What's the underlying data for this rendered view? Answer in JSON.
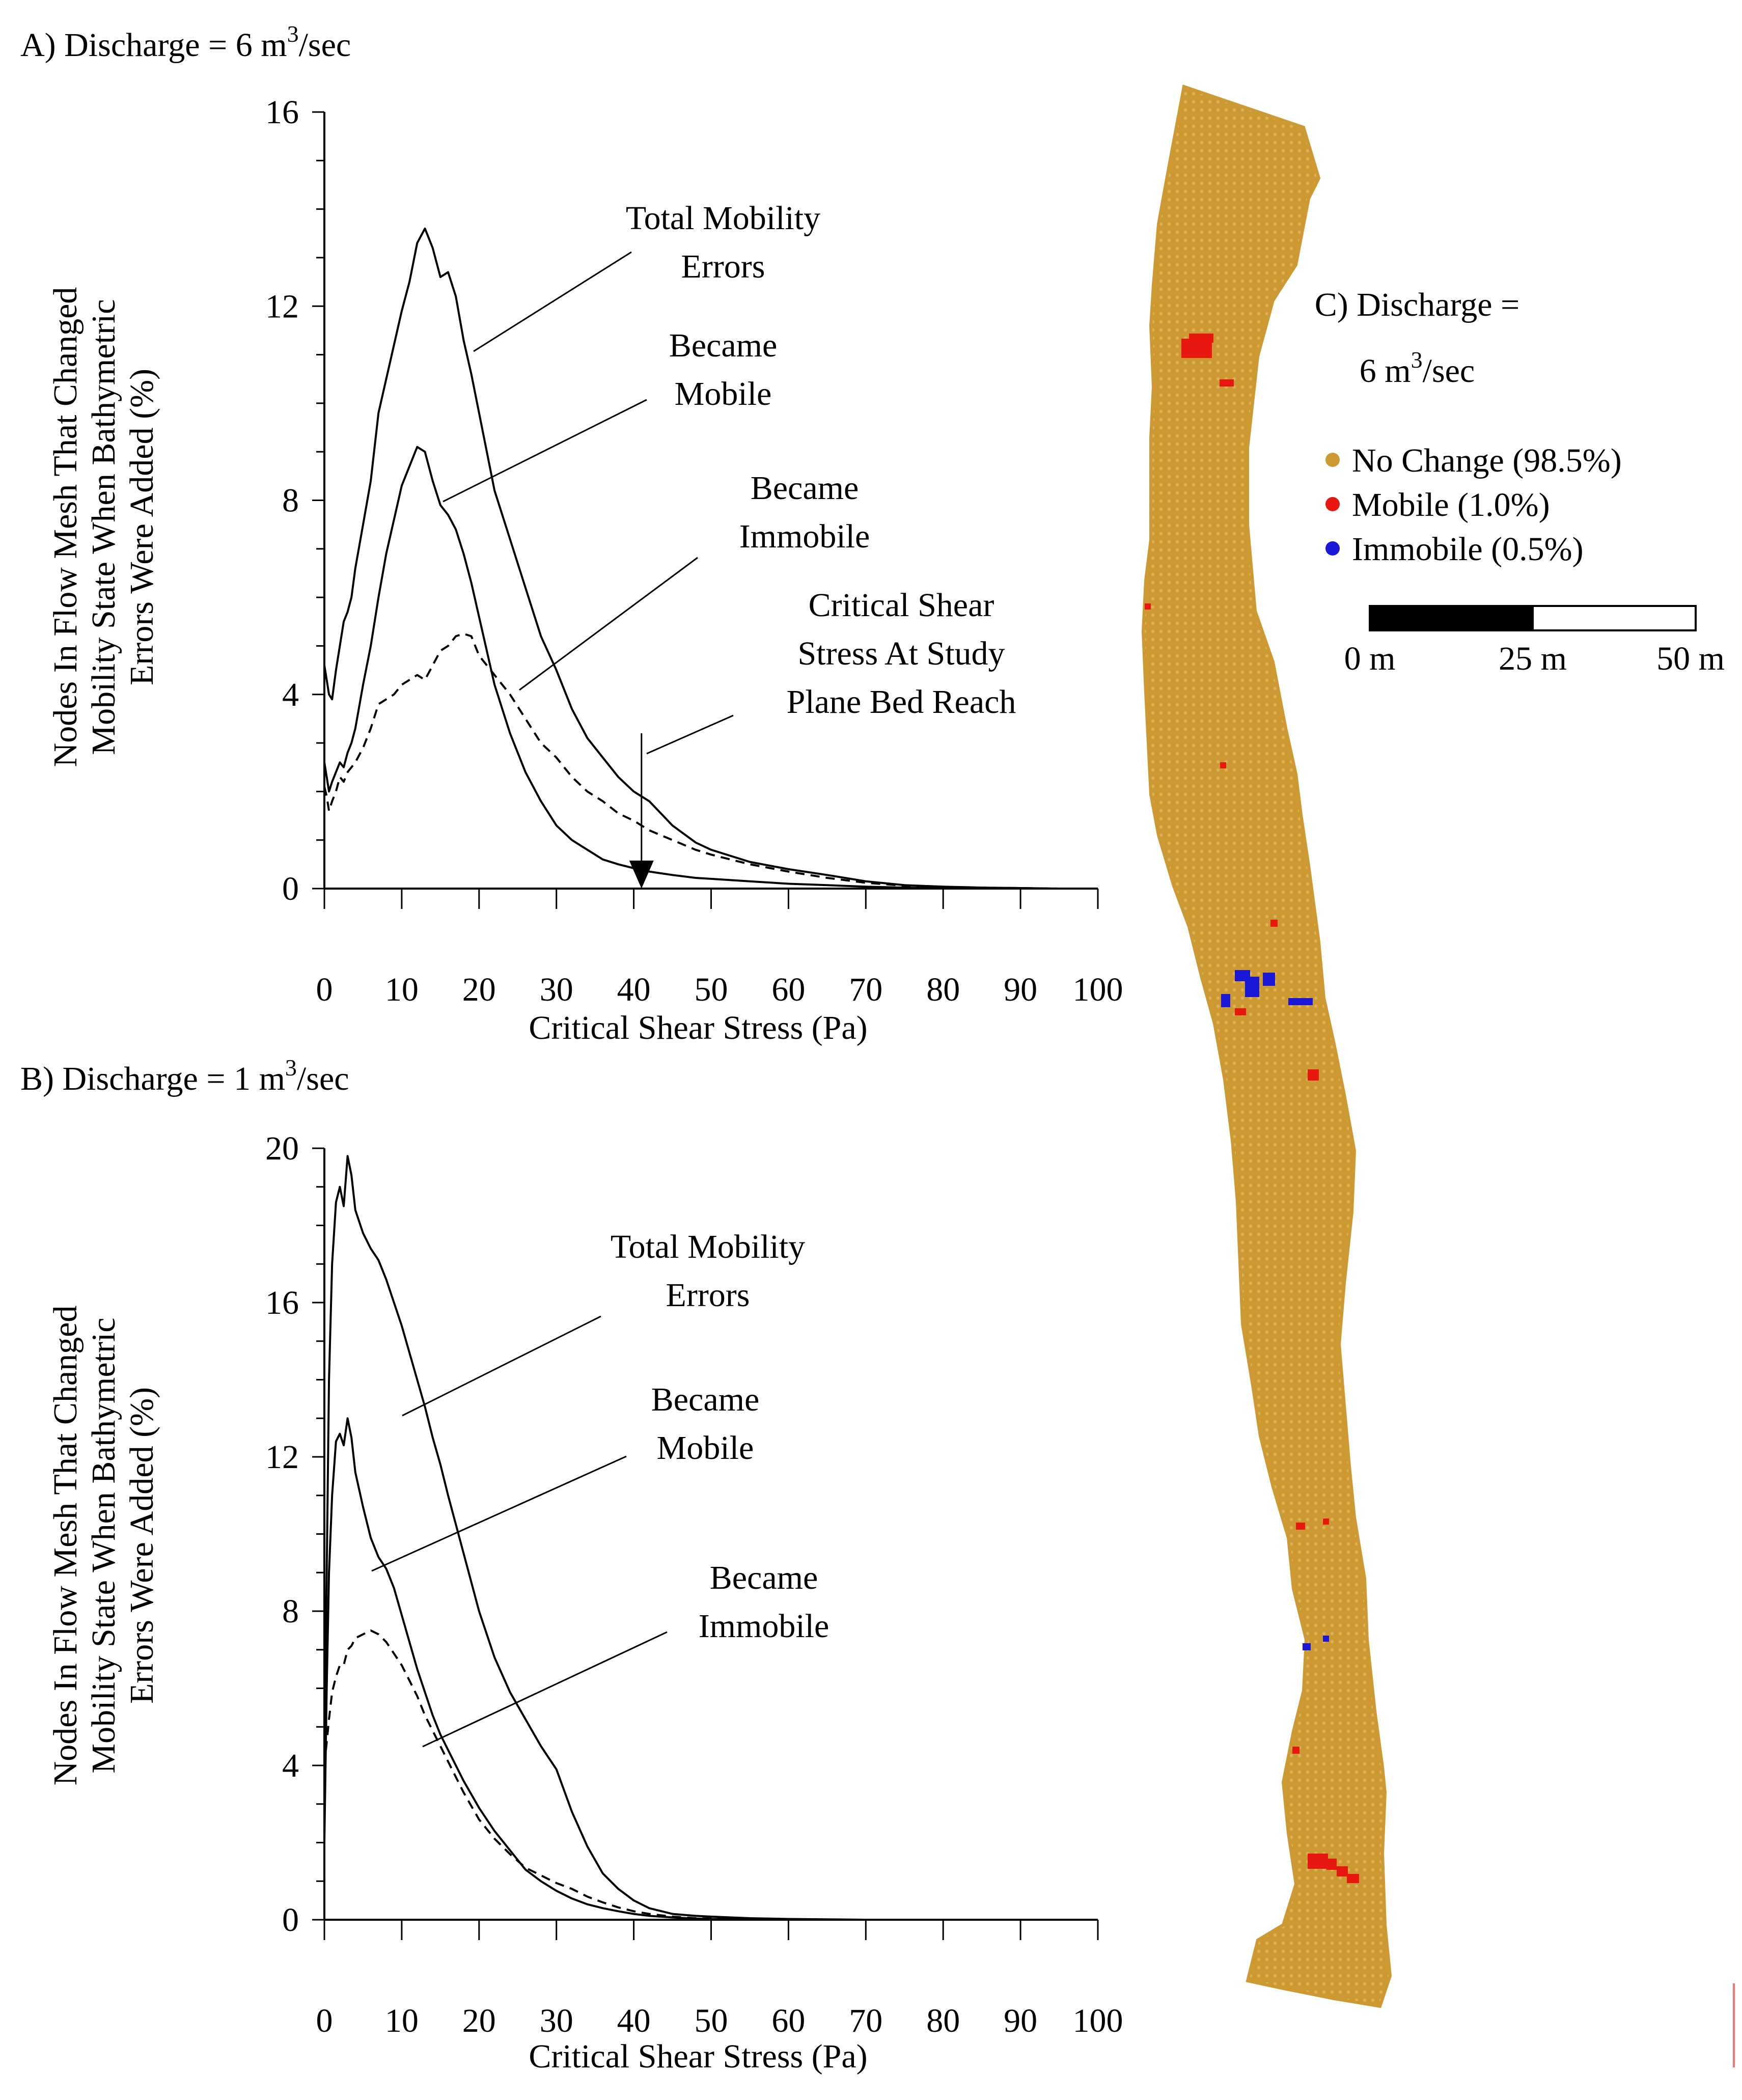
{
  "colors": {
    "no_change": "#cc9933",
    "mobile": "#e8170f",
    "immobile": "#1a18d6",
    "line": "#000000",
    "corner_mark": "#ff7070"
  },
  "chart_data": [
    {
      "id": "A",
      "type": "line",
      "title_prefix": "A) Discharge = 6 m",
      "title_sup": "3",
      "title_suffix": "/sec",
      "xlabel": "Critical Shear Stress (Pa)",
      "ylabel_lines": [
        "Nodes In Flow Mesh That Changed",
        "Mobility State When Bathymetric",
        "Errors Were Added (%)"
      ],
      "xlim": [
        0,
        100
      ],
      "ylim": [
        0,
        16
      ],
      "xticks": [
        0,
        10,
        20,
        30,
        40,
        50,
        60,
        70,
        80,
        90,
        100
      ],
      "yticks": [
        0,
        4,
        8,
        12,
        16
      ],
      "yminor_step": 1,
      "series": [
        {
          "name": "Total Mobility Errors",
          "style": "solid",
          "x": [
            0,
            0.3,
            0.6,
            1,
            1.5,
            2,
            2.5,
            3,
            3.5,
            4,
            5,
            6,
            7,
            8,
            9,
            10,
            11,
            12,
            13,
            14,
            15,
            16,
            17,
            18,
            19,
            20,
            22,
            24,
            26,
            28,
            30,
            32,
            34,
            36,
            38,
            40,
            42,
            45,
            48,
            50,
            55,
            60,
            65,
            70,
            75,
            80,
            85,
            90,
            95,
            98
          ],
          "y": [
            4.6,
            4.3,
            4.0,
            3.9,
            4.5,
            5.0,
            5.5,
            5.7,
            6.0,
            6.6,
            7.5,
            8.4,
            9.8,
            10.5,
            11.2,
            11.9,
            12.5,
            13.3,
            13.6,
            13.2,
            12.6,
            12.7,
            12.2,
            11.3,
            10.6,
            9.8,
            8.2,
            7.2,
            6.2,
            5.2,
            4.5,
            3.7,
            3.1,
            2.7,
            2.3,
            2.0,
            1.8,
            1.3,
            0.95,
            0.8,
            0.55,
            0.4,
            0.28,
            0.15,
            0.07,
            0.04,
            0.02,
            0.01,
            0.0,
            0.0
          ]
        },
        {
          "name": "Became Mobile",
          "style": "solid",
          "x": [
            0,
            0.3,
            0.6,
            1,
            1.5,
            2,
            2.5,
            3,
            3.5,
            4,
            5,
            6,
            7,
            8,
            9,
            10,
            11,
            12,
            13,
            14,
            15,
            16,
            17,
            18,
            19,
            20,
            22,
            24,
            26,
            28,
            30,
            32,
            34,
            36,
            38,
            40,
            42,
            45,
            48,
            50,
            55,
            60,
            65,
            70,
            75,
            80,
            85,
            90
          ],
          "y": [
            2.6,
            2.3,
            2.0,
            2.2,
            2.4,
            2.6,
            2.5,
            2.8,
            3.0,
            3.3,
            4.2,
            5.0,
            6.0,
            6.9,
            7.6,
            8.3,
            8.7,
            9.1,
            9.0,
            8.4,
            7.9,
            7.7,
            7.4,
            6.9,
            6.3,
            5.6,
            4.2,
            3.2,
            2.4,
            1.8,
            1.3,
            1.0,
            0.8,
            0.6,
            0.5,
            0.42,
            0.35,
            0.28,
            0.22,
            0.2,
            0.15,
            0.1,
            0.07,
            0.04,
            0.02,
            0.01,
            0.0,
            0.0
          ]
        },
        {
          "name": "Became Immobile",
          "style": "dashed",
          "x": [
            0,
            0.3,
            0.6,
            1,
            1.5,
            2,
            2.5,
            3,
            3.5,
            4,
            5,
            6,
            7,
            8,
            9,
            10,
            11,
            12,
            13,
            14,
            15,
            16,
            17,
            18,
            19,
            20,
            22,
            24,
            26,
            28,
            30,
            32,
            34,
            36,
            38,
            40,
            42,
            45,
            48,
            50,
            55,
            60,
            65,
            70,
            75,
            80,
            85,
            90,
            95
          ],
          "y": [
            2.1,
            1.9,
            1.6,
            1.8,
            2.0,
            2.3,
            2.2,
            2.4,
            2.5,
            2.6,
            2.9,
            3.3,
            3.8,
            3.9,
            4.0,
            4.2,
            4.3,
            4.4,
            4.3,
            4.6,
            4.9,
            5.0,
            5.2,
            5.25,
            5.2,
            4.8,
            4.4,
            4.0,
            3.5,
            3.0,
            2.7,
            2.3,
            2.0,
            1.8,
            1.55,
            1.4,
            1.2,
            1.0,
            0.8,
            0.7,
            0.5,
            0.35,
            0.22,
            0.12,
            0.06,
            0.03,
            0.02,
            0.01,
            0.0
          ]
        }
      ],
      "annotations": {
        "total_lines": [
          "Total Mobility",
          "Errors"
        ],
        "mobile_lines": [
          "Became",
          "Mobile"
        ],
        "immobile_lines": [
          "Became",
          "Immobile"
        ],
        "critical_lines": [
          "Critical Shear",
          "Stress At Study",
          "Plane Bed Reach"
        ]
      },
      "critical_shear_marker": 41
    },
    {
      "id": "B",
      "type": "line",
      "title_prefix": "B) Discharge = 1 m",
      "title_sup": "3",
      "title_suffix": "/sec",
      "xlabel": "Critical Shear Stress (Pa)",
      "ylabel_lines": [
        "Nodes In Flow Mesh That Changed",
        "Mobility State When Bathymetric",
        "Errors Were Added (%)"
      ],
      "xlim": [
        0,
        100
      ],
      "ylim": [
        0,
        20
      ],
      "xticks": [
        0,
        10,
        20,
        30,
        40,
        50,
        60,
        70,
        80,
        90,
        100
      ],
      "yticks": [
        0,
        4,
        8,
        12,
        16,
        20
      ],
      "yminor_step": 1,
      "series": [
        {
          "name": "Total Mobility Errors",
          "style": "solid",
          "x": [
            0,
            0.3,
            0.6,
            1,
            1.5,
            2,
            2.5,
            3,
            3.5,
            4,
            5,
            6,
            7,
            8,
            9,
            10,
            11,
            12,
            13,
            14,
            15,
            16,
            18,
            20,
            22,
            24,
            26,
            28,
            30,
            32,
            34,
            36,
            38,
            40,
            42,
            45,
            48,
            50,
            55,
            60,
            65,
            70,
            75
          ],
          "y": [
            4.0,
            9.0,
            14.0,
            17.0,
            18.6,
            19.0,
            18.5,
            19.8,
            19.3,
            18.4,
            17.8,
            17.4,
            17.1,
            16.6,
            16.0,
            15.4,
            14.7,
            14.0,
            13.3,
            12.5,
            11.8,
            11.0,
            9.5,
            8.0,
            6.8,
            5.9,
            5.2,
            4.5,
            3.9,
            2.8,
            1.9,
            1.2,
            0.8,
            0.5,
            0.3,
            0.15,
            0.1,
            0.08,
            0.04,
            0.02,
            0.01,
            0.0,
            0.0
          ]
        },
        {
          "name": "Became Mobile",
          "style": "solid",
          "x": [
            0,
            0.3,
            0.6,
            1,
            1.5,
            2,
            2.5,
            3,
            3.5,
            4,
            5,
            6,
            7,
            8,
            9,
            10,
            11,
            12,
            13,
            14,
            15,
            16,
            18,
            20,
            22,
            24,
            26,
            28,
            30,
            32,
            34,
            36,
            38,
            40,
            42,
            45,
            48,
            50,
            55,
            60,
            65,
            70
          ],
          "y": [
            2.0,
            6.0,
            9.0,
            11.0,
            12.4,
            12.6,
            12.3,
            13.0,
            12.5,
            11.6,
            10.7,
            9.9,
            9.4,
            9.1,
            8.6,
            7.9,
            7.2,
            6.5,
            5.9,
            5.3,
            4.8,
            4.4,
            3.6,
            2.9,
            2.3,
            1.8,
            1.3,
            1.0,
            0.75,
            0.55,
            0.4,
            0.3,
            0.22,
            0.15,
            0.1,
            0.06,
            0.03,
            0.02,
            0.01,
            0.0,
            0.0,
            0.0
          ]
        },
        {
          "name": "Became Immobile",
          "style": "dashed",
          "x": [
            0,
            0.3,
            0.6,
            1,
            1.5,
            2,
            2.5,
            3,
            3.5,
            4,
            5,
            6,
            7,
            8,
            9,
            10,
            11,
            12,
            13,
            14,
            15,
            16,
            18,
            20,
            22,
            24,
            26,
            28,
            30,
            32,
            34,
            36,
            38,
            40,
            42,
            45,
            48,
            50,
            55,
            60,
            65,
            70
          ],
          "y": [
            4.0,
            4.6,
            5.2,
            5.9,
            6.3,
            6.6,
            6.6,
            7.0,
            7.1,
            7.3,
            7.4,
            7.5,
            7.4,
            7.2,
            6.9,
            6.6,
            6.2,
            5.8,
            5.3,
            4.9,
            4.5,
            4.1,
            3.3,
            2.6,
            2.1,
            1.7,
            1.35,
            1.15,
            0.95,
            0.8,
            0.6,
            0.45,
            0.32,
            0.22,
            0.15,
            0.08,
            0.04,
            0.03,
            0.01,
            0.0,
            0.0,
            0.0
          ]
        }
      ],
      "annotations": {
        "total_lines": [
          "Total Mobility",
          "Errors"
        ],
        "mobile_lines": [
          "Became",
          "Mobile"
        ],
        "immobile_lines": [
          "Became",
          "Immobile"
        ]
      }
    }
  ],
  "map": {
    "title_line1": "C) Discharge =",
    "title_line2_prefix": "6 m",
    "title_line2_sup": "3",
    "title_line2_suffix": "/sec",
    "legend": [
      {
        "label": "No Change (98.5%)",
        "color_key": "no_change",
        "percent": 98.5
      },
      {
        "label": "Mobile (1.0%)",
        "color_key": "mobile",
        "percent": 1.0
      },
      {
        "label": "Immobile (0.5%)",
        "color_key": "immobile",
        "percent": 0.5
      }
    ],
    "scale_labels": [
      "0 m",
      "25 m",
      "50 m"
    ],
    "scale_values_m": [
      0,
      25,
      50
    ]
  }
}
